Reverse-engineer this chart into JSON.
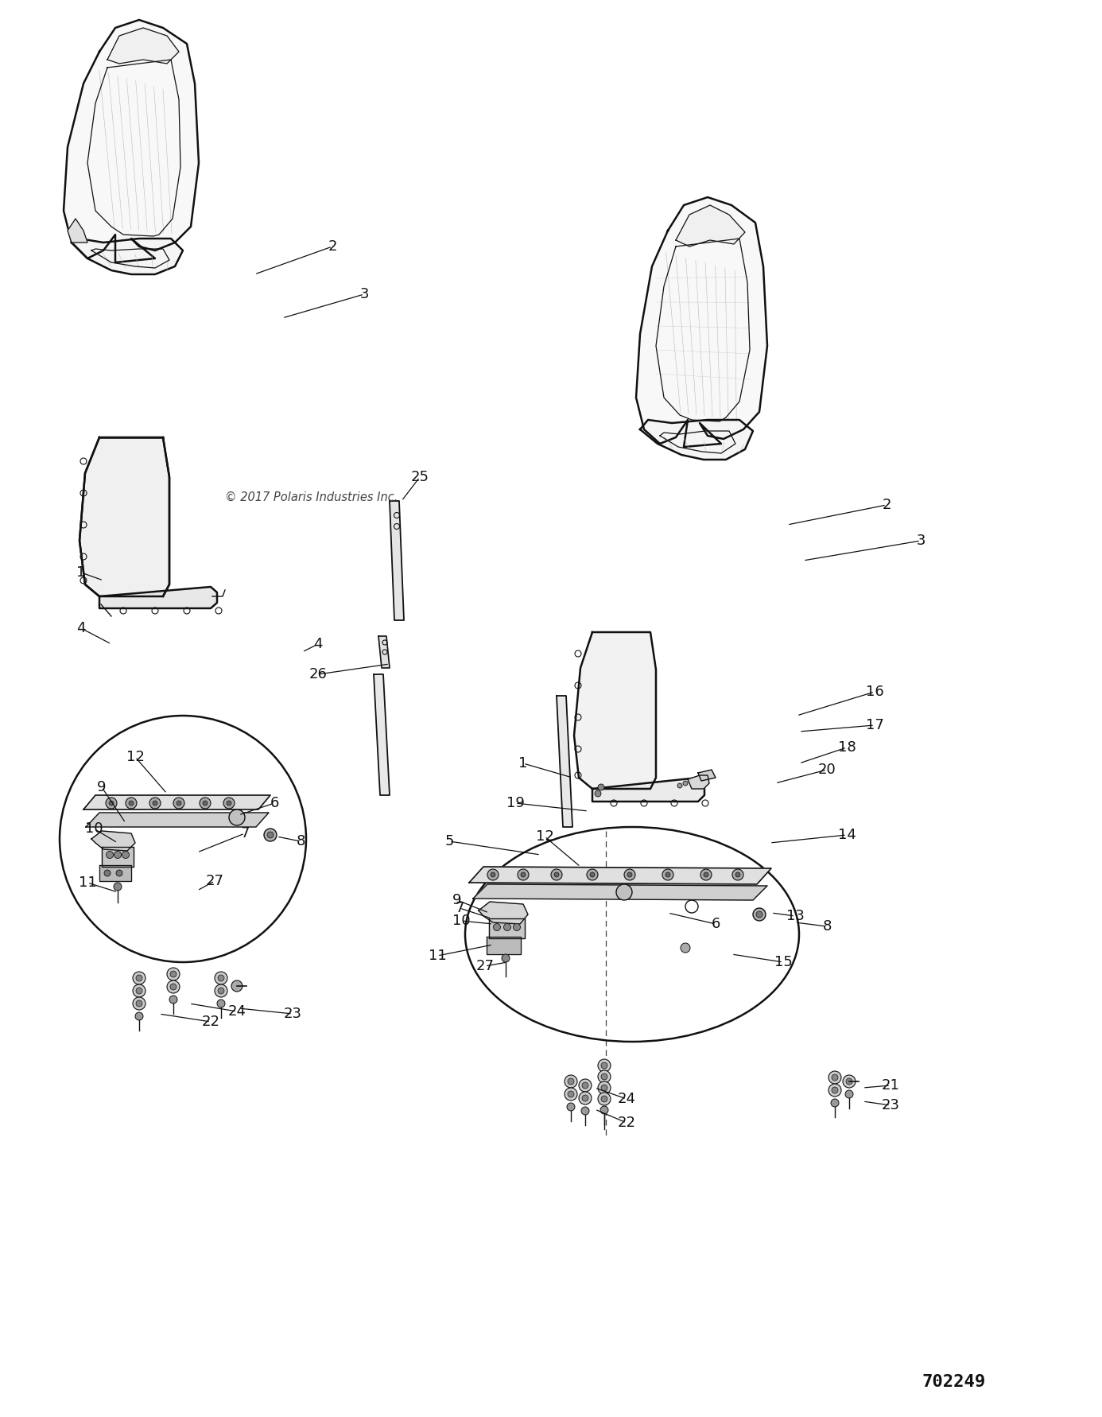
{
  "copyright_text": "© 2017 Polaris Industries Inc.",
  "diagram_number": "702249",
  "background_color": "#ffffff",
  "line_color": "#111111",
  "fig_width": 13.86,
  "fig_height": 17.82
}
